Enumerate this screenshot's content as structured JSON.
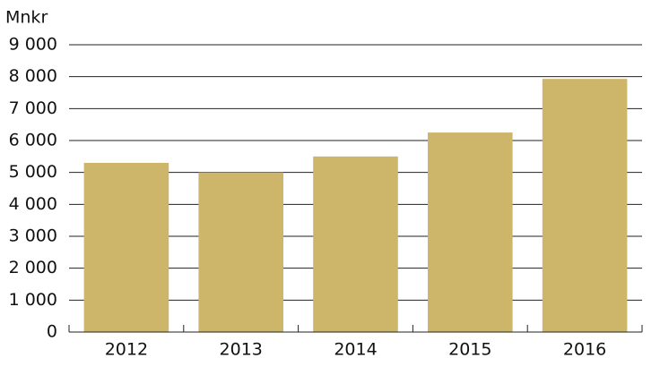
{
  "chart_data": {
    "type": "bar",
    "y_label": "Mnkr",
    "categories": [
      "2012",
      "2013",
      "2014",
      "2015",
      "2016"
    ],
    "values": [
      5300,
      5000,
      5500,
      6250,
      7930
    ],
    "color": "#cdb56a",
    "ylim": [
      0,
      9000
    ],
    "yticks": [
      0,
      {
        "value": 1000,
        "label": "1 000"
      },
      {
        "value": 2000,
        "label": "2 000"
      },
      {
        "value": 3000,
        "label": "3 000"
      },
      {
        "value": 4000,
        "label": "4 000"
      },
      {
        "value": 5000,
        "label": "5 000"
      },
      {
        "value": 6000,
        "label": "6 000"
      },
      {
        "value": 7000,
        "label": "7 000"
      },
      {
        "value": 8000,
        "label": "8 000"
      },
      {
        "value": 9000,
        "label": "9 000"
      }
    ],
    "grid": true
  }
}
